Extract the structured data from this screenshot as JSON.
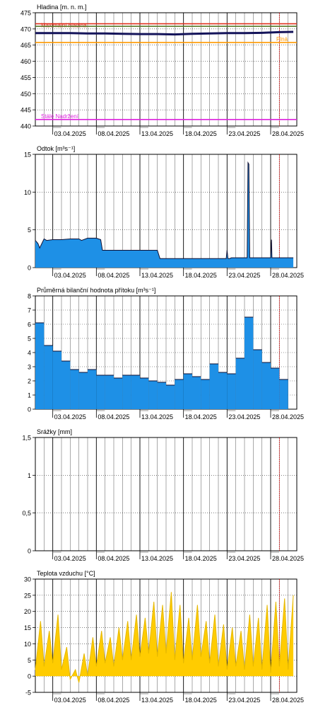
{
  "chart_data": [
    {
      "type": "line",
      "title": "Hladina [m. n. m.]",
      "ylim": [
        440,
        475
      ],
      "yticks": [
        440,
        445,
        450,
        455,
        460,
        465,
        470,
        475
      ],
      "xlim": [
        1,
        31
      ],
      "xticks": [
        "03.04.2025",
        "08.04.2025",
        "13.04.2025",
        "18.04.2025",
        "23.04.2025",
        "28.04.2025"
      ],
      "xtick_days": [
        3,
        8,
        13,
        18,
        23,
        28
      ],
      "grid": true,
      "current_day": 29,
      "ref_lines": [
        {
          "name": "Maximální hladina",
          "value": 471.6,
          "color": "#e0301e"
        },
        {
          "name": "",
          "value": 470.8,
          "color": "#5a7a2a"
        },
        {
          "name": "Plná",
          "value": 465.8,
          "color": "#ff9900"
        },
        {
          "name": "Stálé Nadržení",
          "value": 442.0,
          "color": "#dd22dd"
        }
      ],
      "series": [
        {
          "color": "#14145a",
          "x": [
            1,
            3,
            5,
            7,
            9,
            11,
            13,
            15,
            17,
            19,
            21,
            23,
            25,
            27,
            29,
            30.6
          ],
          "values": [
            468.7,
            468.7,
            468.7,
            468.6,
            468.6,
            468.5,
            468.4,
            468.4,
            468.3,
            468.5,
            468.6,
            468.7,
            468.7,
            468.8,
            469.0,
            469.1
          ]
        }
      ]
    },
    {
      "type": "area",
      "title": "Odtok [m³s⁻¹]",
      "ylim": [
        0,
        15
      ],
      "yticks": [
        0,
        5,
        10,
        15
      ],
      "xlim": [
        1,
        31
      ],
      "xticks": [
        "03.04.2025",
        "08.04.2025",
        "13.04.2025",
        "18.04.2025",
        "23.04.2025",
        "28.04.2025"
      ],
      "xtick_days": [
        3,
        8,
        13,
        18,
        23,
        28
      ],
      "grid": true,
      "current_day": 29,
      "series": [
        {
          "fill": "#1e90e6",
          "line": "#111133",
          "x": [
            1,
            1.3,
            1.5,
            2,
            2.3,
            3,
            4,
            5,
            6,
            6.3,
            7,
            8,
            8.5,
            8.7,
            9,
            10,
            12,
            13,
            14,
            15,
            15.3,
            16,
            17,
            18,
            19,
            20,
            21,
            22,
            22.9,
            23.0,
            23.1,
            23.3,
            23.5,
            24,
            25,
            25.3,
            25.4,
            25.5,
            25.6,
            25.8,
            26,
            27,
            28,
            28.1,
            28.15,
            28.2,
            28.4,
            29,
            30,
            30.6
          ],
          "values": [
            3.6,
            3.2,
            2.6,
            3.8,
            3.6,
            3.7,
            3.7,
            3.8,
            3.8,
            3.6,
            3.9,
            3.9,
            3.7,
            2.3,
            2.3,
            2.3,
            2.3,
            2.3,
            2.3,
            2.3,
            1.2,
            1.2,
            1.2,
            1.2,
            1.2,
            1.2,
            1.2,
            1.2,
            1.2,
            2.3,
            1.2,
            1.2,
            1.3,
            1.3,
            1.3,
            1.3,
            13.9,
            13.7,
            1.3,
            1.3,
            1.3,
            1.3,
            1.3,
            3.7,
            1.3,
            1.3,
            1.3,
            1.3,
            1.3,
            1.3
          ]
        }
      ]
    },
    {
      "type": "bar",
      "title": "Průměrná bilanční hodnota přítoku   [m³s⁻¹]",
      "ylim": [
        0,
        8
      ],
      "yticks": [
        0,
        1,
        2,
        3,
        4,
        5,
        6,
        7,
        8
      ],
      "xlim": [
        1,
        31
      ],
      "xticks": [
        "03.04.2025",
        "08.04.2025",
        "13.04.2025",
        "18.04.2025",
        "23.04.2025",
        "28.04.2025"
      ],
      "xtick_days": [
        3,
        8,
        13,
        18,
        23,
        28
      ],
      "grid": true,
      "current_day": 29,
      "series": [
        {
          "fill": "#1e90e6",
          "line": "#111133",
          "start_day": 1,
          "values": [
            6.1,
            4.5,
            4.1,
            3.4,
            2.8,
            2.6,
            2.8,
            2.4,
            2.4,
            2.2,
            2.4,
            2.4,
            2.2,
            2.0,
            1.9,
            1.7,
            2.1,
            2.5,
            2.3,
            2.1,
            3.2,
            2.6,
            2.5,
            3.6,
            6.5,
            4.2,
            3.3,
            2.9,
            2.1,
            0
          ]
        }
      ]
    },
    {
      "type": "bar",
      "title": "Srážky [mm]",
      "ylim": [
        0,
        1.5
      ],
      "yticks": [
        0,
        0.5,
        1,
        1.5
      ],
      "ytick_labels": [
        "0",
        "0,5",
        "1",
        "1,5"
      ],
      "xlim": [
        1,
        31
      ],
      "xticks": [
        "03.04.2025",
        "08.04.2025",
        "13.04.2025",
        "18.04.2025",
        "23.04.2025",
        "28.04.2025"
      ],
      "xtick_days": [
        3,
        8,
        13,
        18,
        23,
        28
      ],
      "grid": true,
      "current_day": 29,
      "series": []
    },
    {
      "type": "area",
      "title": "Teplota vzduchu [°C]",
      "ylim": [
        -5,
        30
      ],
      "yticks": [
        -5,
        0,
        5,
        10,
        15,
        20,
        25,
        30
      ],
      "xlim": [
        1,
        31
      ],
      "xticks": [
        "03.04.2025",
        "08.04.2025",
        "13.04.2025",
        "18.04.2025",
        "23.04.2025",
        "28.04.2025"
      ],
      "xtick_days": [
        3,
        8,
        13,
        18,
        23,
        28
      ],
      "grid": true,
      "current_day": 29,
      "series": [
        {
          "fill": "#ffcc00",
          "line": "#e6b800",
          "x": [
            1,
            1.6,
            2,
            2.6,
            3,
            3.6,
            4,
            4.6,
            5,
            5.6,
            6,
            6.6,
            7,
            7.6,
            8,
            8.6,
            9,
            9.6,
            10,
            10.6,
            11,
            11.6,
            12,
            12.6,
            13,
            13.6,
            14,
            14.6,
            15,
            15.6,
            16,
            16.6,
            17,
            17.6,
            18,
            18.6,
            19,
            19.6,
            20,
            20.6,
            21,
            21.6,
            22,
            22.6,
            23,
            23.6,
            24,
            24.6,
            25,
            25.6,
            26,
            26.6,
            27,
            27.6,
            28,
            28.6,
            29,
            29.6,
            30,
            30.6
          ],
          "values": [
            2,
            17,
            3,
            14,
            4,
            19,
            2,
            9,
            -1,
            2,
            -2,
            7,
            0,
            12,
            3,
            14,
            4,
            12,
            3,
            15,
            5,
            17,
            5,
            19,
            6,
            18,
            7,
            23,
            6,
            22,
            7,
            26,
            5,
            22,
            4,
            18,
            5,
            22,
            6,
            17,
            4,
            19,
            3,
            16,
            2,
            15,
            3,
            14,
            2,
            19,
            3,
            18,
            2,
            22,
            1,
            23,
            3,
            24,
            2,
            25
          ]
        }
      ]
    }
  ]
}
